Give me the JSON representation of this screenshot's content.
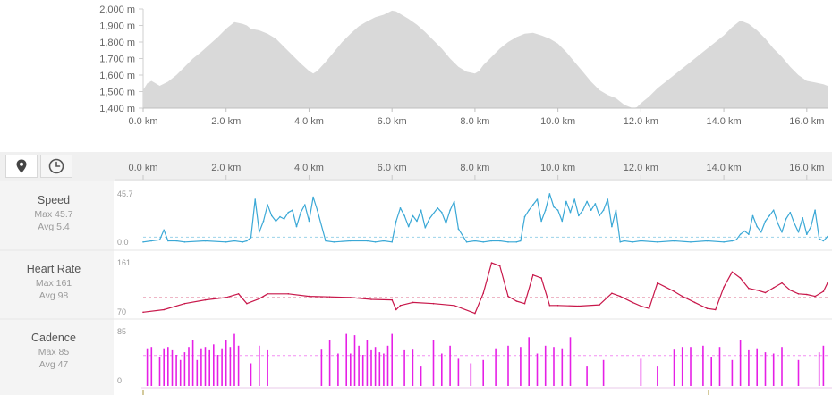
{
  "elevation": {
    "y_ticks": [
      "2,000 m",
      "1,900 m",
      "1,800 m",
      "1,700 m",
      "1,600 m",
      "1,500 m",
      "1,400 m"
    ],
    "x_ticks": [
      "0.0 km",
      "2.0 km",
      "4.0 km",
      "6.0 km",
      "8.0 km",
      "10.0 km",
      "12.0 km",
      "14.0 km",
      "16.0 km"
    ]
  },
  "toolbar": {
    "map_button_icon": "location-pin-icon",
    "time_button_icon": "clock-icon",
    "x_ticks": [
      "0.0 km",
      "2.0 km",
      "4.0 km",
      "6.0 km",
      "8.0 km",
      "10.0 km",
      "12.0 km",
      "14.0 km",
      "16.0 km"
    ]
  },
  "metrics": {
    "speed": {
      "label": "Speed",
      "max": "Max 45.7",
      "avg": "Avg 5.4",
      "top_tick": "45.7",
      "bottom_tick": "0.0",
      "color": "#3aa8d6"
    },
    "heart_rate": {
      "label": "Heart Rate",
      "max": "Max 161",
      "avg": "Avg 98",
      "top_tick": "161",
      "bottom_tick": "70",
      "color": "#c8174a"
    },
    "cadence": {
      "label": "Cadence",
      "max": "Max 85",
      "avg": "Avg 47",
      "top_tick": "85",
      "bottom_tick": "0",
      "color": "#e620e6"
    }
  },
  "chart_data": [
    {
      "type": "area",
      "ylabel": "",
      "xlabel": "",
      "x_unit": "km",
      "y_unit": "m",
      "xlim": [
        0,
        16.5
      ],
      "ylim": [
        1400,
        2000
      ],
      "fill_color": "#d9d9d9",
      "x": [
        0,
        0.1,
        0.2,
        0.4,
        0.6,
        0.8,
        1.0,
        1.2,
        1.4,
        1.6,
        1.8,
        2.0,
        2.2,
        2.4,
        2.5,
        2.6,
        2.8,
        3.0,
        3.2,
        3.4,
        3.6,
        3.8,
        4.0,
        4.1,
        4.2,
        4.4,
        4.6,
        4.8,
        5.0,
        5.2,
        5.4,
        5.6,
        5.8,
        6.0,
        6.1,
        6.2,
        6.4,
        6.6,
        6.8,
        7.0,
        7.2,
        7.4,
        7.6,
        7.8,
        8.0,
        8.1,
        8.2,
        8.4,
        8.6,
        8.8,
        9.0,
        9.2,
        9.4,
        9.6,
        9.8,
        10.0,
        10.2,
        10.4,
        10.6,
        10.8,
        11.0,
        11.2,
        11.4,
        11.6,
        11.8,
        11.9,
        12.0,
        12.2,
        12.4,
        12.6,
        12.8,
        13.0,
        13.2,
        13.4,
        13.6,
        13.8,
        14.0,
        14.2,
        14.4,
        14.6,
        14.8,
        15.0,
        15.2,
        15.4,
        15.6,
        15.8,
        16.0,
        16.2,
        16.4,
        16.5
      ],
      "y": [
        1510,
        1550,
        1565,
        1535,
        1560,
        1600,
        1650,
        1700,
        1740,
        1785,
        1830,
        1880,
        1920,
        1910,
        1900,
        1880,
        1870,
        1850,
        1820,
        1770,
        1720,
        1670,
        1625,
        1610,
        1625,
        1680,
        1740,
        1800,
        1850,
        1895,
        1925,
        1950,
        1965,
        1990,
        1985,
        1970,
        1940,
        1905,
        1860,
        1810,
        1760,
        1700,
        1650,
        1620,
        1610,
        1625,
        1660,
        1710,
        1760,
        1800,
        1830,
        1850,
        1855,
        1840,
        1820,
        1790,
        1740,
        1680,
        1620,
        1560,
        1510,
        1480,
        1460,
        1420,
        1400,
        1405,
        1430,
        1470,
        1520,
        1560,
        1600,
        1640,
        1680,
        1720,
        1760,
        1800,
        1840,
        1890,
        1930,
        1910,
        1870,
        1820,
        1760,
        1710,
        1650,
        1600,
        1565,
        1555,
        1545,
        1535
      ]
    },
    {
      "type": "line",
      "name": "Speed",
      "xlim": [
        0,
        16.5
      ],
      "ylim": [
        0,
        45.7
      ],
      "avg": 5.4,
      "x": [
        0,
        0.2,
        0.4,
        0.5,
        0.6,
        0.8,
        1.0,
        1.5,
        2.0,
        2.2,
        2.4,
        2.5,
        2.6,
        2.7,
        2.8,
        2.9,
        3.0,
        3.1,
        3.2,
        3.3,
        3.4,
        3.5,
        3.6,
        3.7,
        3.8,
        3.9,
        4.0,
        4.1,
        4.2,
        4.4,
        4.6,
        5.0,
        5.4,
        5.6,
        5.8,
        6.0,
        6.1,
        6.2,
        6.3,
        6.4,
        6.5,
        6.6,
        6.7,
        6.8,
        6.9,
        7.0,
        7.1,
        7.2,
        7.3,
        7.4,
        7.5,
        7.6,
        7.8,
        8.0,
        8.2,
        8.4,
        8.6,
        8.8,
        9.0,
        9.1,
        9.2,
        9.3,
        9.4,
        9.5,
        9.6,
        9.7,
        9.8,
        9.9,
        10.0,
        10.1,
        10.2,
        10.3,
        10.4,
        10.5,
        10.6,
        10.7,
        10.8,
        10.9,
        11.0,
        11.1,
        11.2,
        11.3,
        11.4,
        11.5,
        11.6,
        11.8,
        12.0,
        12.4,
        12.8,
        13.2,
        13.6,
        14.0,
        14.2,
        14.3,
        14.4,
        14.5,
        14.6,
        14.7,
        14.8,
        14.9,
        15.0,
        15.1,
        15.2,
        15.3,
        15.4,
        15.5,
        15.6,
        15.7,
        15.8,
        15.9,
        16.0,
        16.1,
        16.2,
        16.3,
        16.4,
        16.5
      ],
      "y": [
        1,
        2,
        3,
        12,
        2,
        2,
        1,
        2,
        1,
        2,
        1,
        2,
        5,
        40,
        10,
        20,
        35,
        25,
        20,
        24,
        22,
        28,
        30,
        15,
        28,
        35,
        20,
        42,
        30,
        2,
        1,
        2,
        2,
        1,
        2,
        1,
        20,
        32,
        25,
        15,
        25,
        20,
        30,
        14,
        22,
        27,
        32,
        28,
        18,
        30,
        38,
        13,
        1,
        2,
        1,
        2,
        2,
        1,
        1,
        2,
        24,
        30,
        35,
        40,
        20,
        30,
        45,
        33,
        30,
        20,
        38,
        28,
        40,
        25,
        30,
        38,
        30,
        36,
        25,
        30,
        40,
        15,
        30,
        1,
        2,
        1,
        2,
        1,
        2,
        1,
        2,
        1,
        2,
        3,
        8,
        11,
        8,
        25,
        15,
        10,
        20,
        25,
        30,
        18,
        10,
        22,
        28,
        18,
        10,
        23,
        8,
        15,
        30,
        4,
        2,
        6
      ],
      "color": "#3aa8d6"
    },
    {
      "type": "line",
      "name": "Heart Rate",
      "xlim": [
        0,
        16.5
      ],
      "ylim": [
        70,
        161
      ],
      "avg": 98,
      "x": [
        0,
        0.5,
        1.0,
        1.5,
        2.0,
        2.3,
        2.5,
        2.8,
        3.0,
        3.5,
        4.0,
        4.5,
        5.0,
        5.5,
        6.0,
        6.1,
        6.2,
        6.5,
        7.0,
        7.5,
        8.0,
        8.2,
        8.4,
        8.6,
        8.8,
        9.0,
        9.2,
        9.4,
        9.6,
        9.8,
        10.0,
        10.5,
        11.0,
        11.3,
        11.5,
        11.8,
        12.0,
        12.2,
        12.4,
        12.6,
        12.8,
        13.0,
        13.3,
        13.6,
        13.8,
        14.0,
        14.2,
        14.4,
        14.6,
        14.8,
        15.0,
        15.2,
        15.4,
        15.6,
        15.8,
        16.0,
        16.2,
        16.4,
        16.5
      ],
      "y": [
        74,
        78,
        88,
        94,
        98,
        104,
        88,
        96,
        104,
        104,
        100,
        99,
        98,
        95,
        94,
        78,
        85,
        90,
        88,
        85,
        72,
        105,
        155,
        150,
        100,
        92,
        88,
        135,
        130,
        85,
        85,
        84,
        86,
        105,
        100,
        90,
        84,
        80,
        122,
        115,
        108,
        100,
        90,
        80,
        78,
        115,
        140,
        130,
        113,
        110,
        106,
        114,
        122,
        110,
        104,
        103,
        100,
        108,
        122
      ],
      "color": "#c8174a"
    },
    {
      "type": "bar",
      "name": "Cadence",
      "xlim": [
        0,
        16.5
      ],
      "ylim": [
        0,
        85
      ],
      "avg": 47,
      "x": [
        0.1,
        0.2,
        0.4,
        0.5,
        0.6,
        0.7,
        0.8,
        0.9,
        1.0,
        1.1,
        1.2,
        1.3,
        1.4,
        1.5,
        1.6,
        1.7,
        1.8,
        1.9,
        2.0,
        2.1,
        2.2,
        2.3,
        2.6,
        2.8,
        3.0,
        4.3,
        4.5,
        4.7,
        4.9,
        5.0,
        5.1,
        5.2,
        5.3,
        5.4,
        5.5,
        5.6,
        5.7,
        5.8,
        5.9,
        6.0,
        6.3,
        6.5,
        6.7,
        7.0,
        7.2,
        7.4,
        7.6,
        7.9,
        8.2,
        8.5,
        8.8,
        9.1,
        9.3,
        9.5,
        9.7,
        9.9,
        10.1,
        10.3,
        10.7,
        11.1,
        12.0,
        12.4,
        12.8,
        13.0,
        13.2,
        13.5,
        13.7,
        13.9,
        14.2,
        14.4,
        14.6,
        14.8,
        15.0,
        15.2,
        15.4,
        15.8,
        16.3,
        16.4
      ],
      "y": [
        58,
        60,
        45,
        58,
        60,
        55,
        48,
        40,
        52,
        60,
        70,
        40,
        58,
        60,
        55,
        64,
        48,
        58,
        70,
        60,
        80,
        62,
        35,
        62,
        55,
        56,
        70,
        50,
        80,
        50,
        78,
        62,
        48,
        70,
        55,
        60,
        52,
        50,
        62,
        80,
        55,
        56,
        30,
        70,
        50,
        62,
        42,
        35,
        40,
        58,
        62,
        60,
        75,
        50,
        62,
        60,
        58,
        75,
        30,
        40,
        42,
        30,
        56,
        60,
        60,
        62,
        45,
        60,
        40,
        70,
        55,
        58,
        52,
        50,
        60,
        40,
        52,
        62
      ],
      "color": "#e620e6"
    }
  ]
}
